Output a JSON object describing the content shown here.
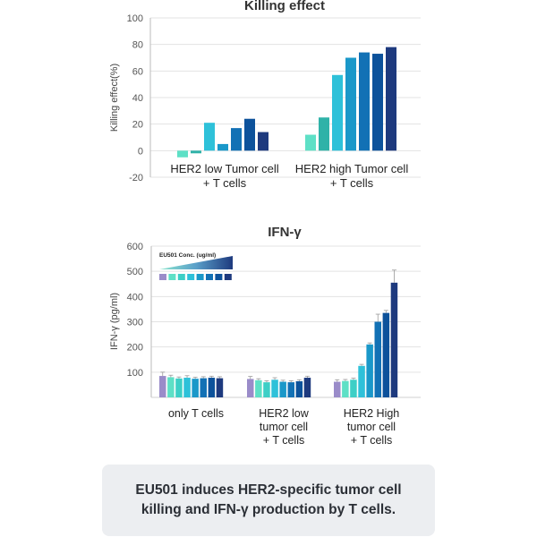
{
  "chart_data": [
    {
      "type": "bar",
      "title": "Killing effect",
      "ylabel": "Killing effect(%)",
      "ylim": [
        -20,
        100
      ],
      "yticks": [
        100,
        80,
        60,
        40,
        20,
        0,
        -20
      ],
      "grid": true,
      "groups": [
        {
          "label": "HER2 low Tumor cell\n+ T cells",
          "values": [
            -5,
            -2,
            21,
            5,
            17,
            24,
            14
          ]
        },
        {
          "label": "HER2 high Tumor cell\n+ T cells",
          "values": [
            12,
            25,
            57,
            70,
            74,
            73,
            78
          ]
        }
      ],
      "colors": [
        "#5ee0c6",
        "#2fb2a8",
        "#2ec1d9",
        "#1a98c9",
        "#1271b5",
        "#0d529b",
        "#1e3a7e"
      ]
    },
    {
      "type": "bar",
      "title": "IFN-γ",
      "ylabel": "IFN-γ (pg/ml)",
      "ylim": [
        0,
        600
      ],
      "yticks": [
        600,
        500,
        400,
        300,
        200,
        100
      ],
      "grid": true,
      "legend": {
        "title": "EU501 Conc. (ug/ml)"
      },
      "groups": [
        {
          "label": "only T cells",
          "values": [
            85,
            80,
            75,
            78,
            74,
            76,
            78,
            76
          ]
        },
        {
          "label": "HER2 low\ntumor cell\n+ T cells",
          "values": [
            73,
            68,
            60,
            70,
            62,
            60,
            64,
            78
          ]
        },
        {
          "label": "HER2 High\ntumor cell\n+ T cells",
          "values": [
            62,
            65,
            70,
            125,
            210,
            300,
            335,
            455
          ]
        }
      ],
      "error_bars": [
        [
          15,
          8,
          6,
          8,
          6,
          6,
          6,
          6
        ],
        [
          10,
          6,
          6,
          8,
          6,
          6,
          6,
          6
        ],
        [
          8,
          6,
          6,
          6,
          6,
          30,
          10,
          50
        ]
      ],
      "colors": [
        "#9a8cc9",
        "#5ee0c6",
        "#3dcfc6",
        "#2ec1d9",
        "#1a98c9",
        "#1271b5",
        "#0d529b",
        "#1e3a7e"
      ]
    }
  ],
  "caption": "EU501 induces HER2-specific tumor cell\nkilling and IFN-γ production by T cells."
}
